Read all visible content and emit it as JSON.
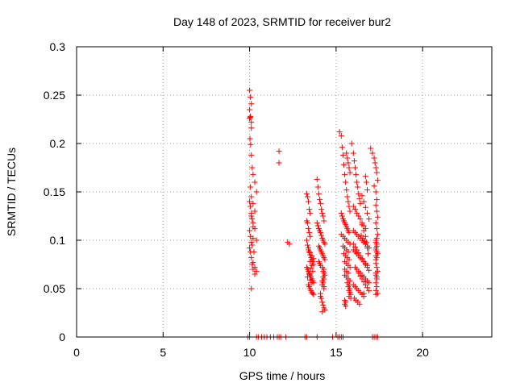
{
  "chart_data": {
    "type": "scatter",
    "title": "Day 148 of 2023, SRMTID for receiver bur2",
    "xlabel": "GPS time / hours",
    "ylabel": "SRMTID / TECUs",
    "xlim": [
      0,
      24
    ],
    "ylim": [
      0,
      0.3
    ],
    "xticks": [
      0,
      5,
      10,
      15,
      20
    ],
    "xtick_labels": [
      "0",
      "5",
      "10",
      "15",
      "20"
    ],
    "yticks": [
      0,
      0.05,
      0.1,
      0.15,
      0.2,
      0.25,
      0.3
    ],
    "ytick_labels": [
      "0",
      "0.05",
      "0.1",
      "0.15",
      "0.2",
      "0.25",
      "0.3"
    ],
    "grid": true,
    "marker": "+",
    "series": [
      {
        "name": "SRMTID",
        "color": "#ff0000",
        "x": [
          10.0,
          10.05,
          10.1,
          10.0,
          10.05,
          10.1,
          10.0,
          10.05,
          10.1,
          10.02,
          10.06,
          10.1,
          10.15,
          10.2,
          10.3,
          10.4,
          10.05,
          10.1,
          10.2,
          10.3,
          10.1,
          10.2,
          10.3,
          10.4,
          10.15,
          10.25,
          10.0,
          10.05,
          10.1,
          10.15,
          10.2,
          10.0,
          10.05,
          10.1,
          10.0,
          10.05,
          10.1,
          10.2,
          10.3,
          10.4,
          10.15,
          10.2,
          10.3,
          10.1,
          10.2,
          11.7,
          11.7,
          12.2,
          12.3,
          13.3,
          13.35,
          13.4,
          13.45,
          13.5,
          13.3,
          13.35,
          13.4,
          13.45,
          13.5,
          13.3,
          13.35,
          13.4,
          13.45,
          13.5,
          13.55,
          13.6,
          13.65,
          13.7,
          13.3,
          13.35,
          13.4,
          13.45,
          13.5,
          13.55,
          13.6,
          13.65,
          13.7,
          13.4,
          13.45,
          13.5,
          13.55,
          13.6,
          13.65,
          13.7,
          13.4,
          13.5,
          13.6,
          13.7,
          13.5,
          13.6,
          13.55,
          13.65,
          13.45,
          13.35,
          13.5,
          13.6,
          13.9,
          13.95,
          14.0,
          14.05,
          14.1,
          14.15,
          14.2,
          14.25,
          14.3,
          13.9,
          13.95,
          14.0,
          14.05,
          14.1,
          14.15,
          14.2,
          14.25,
          14.3,
          14.35,
          14.0,
          14.05,
          14.1,
          14.15,
          14.2,
          14.25,
          14.3,
          14.35,
          14.0,
          14.05,
          14.1,
          14.2,
          14.3,
          14.25,
          14.3,
          14.35,
          14.25,
          14.3,
          14.2,
          14.25,
          14.2,
          14.3,
          14.3,
          14.1,
          14.15,
          14.2,
          14.25,
          14.3,
          14.35,
          14.1,
          14.2,
          15.2,
          15.3,
          15.35,
          15.4,
          15.45,
          15.5,
          15.55,
          15.6,
          15.65,
          15.7,
          15.75,
          15.8,
          15.3,
          15.35,
          15.4,
          15.45,
          15.5,
          15.55,
          15.6,
          15.65,
          15.7,
          15.75,
          15.3,
          15.4,
          15.5,
          15.6,
          15.7,
          15.8,
          15.4,
          15.5,
          15.6,
          15.7,
          15.45,
          15.55,
          15.65,
          15.75,
          15.5,
          15.6,
          15.7,
          15.8,
          15.5,
          15.6,
          15.7,
          15.5,
          15.6,
          15.7,
          15.8,
          15.65,
          15.75,
          15.7,
          15.8,
          15.75,
          15.8,
          15.85,
          15.75,
          15.85,
          15.5,
          15.55,
          15.5,
          15.55,
          15.6,
          15.65,
          15.7,
          15.75,
          15.8,
          15.9,
          16.0,
          16.05,
          16.1,
          16.15,
          16.2,
          16.25,
          16.3,
          16.35,
          16.4,
          16.0,
          16.1,
          16.2,
          16.3,
          16.4,
          16.5,
          16.6,
          16.7,
          16.0,
          16.1,
          16.2,
          16.3,
          16.4,
          16.5,
          16.6,
          16.7,
          16.8,
          16.9,
          16.0,
          16.1,
          16.2,
          16.3,
          16.4,
          16.5,
          16.6,
          16.7,
          16.8,
          16.1,
          16.2,
          16.3,
          16.4,
          16.5,
          16.6,
          16.7,
          16.8,
          16.9,
          16.0,
          16.1,
          16.2,
          16.3,
          16.4,
          16.5,
          16.6,
          16.05,
          16.15,
          16.25,
          16.35,
          16.45,
          16.55,
          16.65,
          16.0,
          16.1,
          16.2,
          16.3,
          16.4,
          16.5,
          16.6,
          16.7,
          16.8,
          16.9,
          16.3,
          16.4,
          16.5,
          16.6,
          16.7,
          16.8,
          16.9,
          16.6,
          16.7,
          16.75,
          16.8,
          16.5,
          16.6,
          16.7,
          16.8,
          16.9,
          16.5,
          16.6,
          16.7,
          16.75,
          16.8,
          16.85,
          17.0,
          17.1,
          17.2,
          17.25,
          17.3,
          17.35,
          17.4,
          17.2,
          17.3,
          17.35,
          17.3,
          17.35,
          17.4,
          17.3,
          17.35,
          17.4,
          17.3,
          17.35,
          17.3,
          17.35,
          17.3,
          17.3,
          17.3,
          17.35,
          17.4,
          17.3,
          17.35,
          17.3,
          17.35,
          17.3,
          17.4,
          17.35,
          17.3,
          17.35,
          17.3,
          17.4,
          17.35,
          17.3,
          17.35,
          17.3,
          9.9,
          10.0,
          10.4,
          10.5,
          10.7,
          10.85,
          11.0,
          11.2,
          11.4,
          11.6,
          11.7,
          11.8,
          12.1,
          13.2,
          13.3,
          14.8,
          13.9,
          15.1,
          15.2,
          15.3,
          15.4,
          17.1,
          17.2,
          17.3,
          17.4
        ],
        "y": [
          0.255,
          0.248,
          0.241,
          0.235,
          0.228,
          0.222,
          0.226,
          0.227,
          0.216,
          0.205,
          0.199,
          0.188,
          0.175,
          0.168,
          0.16,
          0.15,
          0.155,
          0.145,
          0.138,
          0.13,
          0.125,
          0.118,
          0.112,
          0.1,
          0.095,
          0.088,
          0.14,
          0.135,
          0.128,
          0.122,
          0.114,
          0.11,
          0.104,
          0.098,
          0.092,
          0.088,
          0.082,
          0.077,
          0.072,
          0.068,
          0.075,
          0.07,
          0.065,
          0.05,
          0.102,
          0.192,
          0.18,
          0.098,
          0.096,
          0.148,
          0.145,
          0.14,
          0.132,
          0.128,
          0.12,
          0.118,
          0.112,
          0.108,
          0.104,
          0.1,
          0.095,
          0.092,
          0.088,
          0.085,
          0.082,
          0.08,
          0.078,
          0.075,
          0.072,
          0.07,
          0.068,
          0.066,
          0.064,
          0.062,
          0.06,
          0.058,
          0.056,
          0.054,
          0.052,
          0.05,
          0.048,
          0.046,
          0.045,
          0.044,
          0.09,
          0.087,
          0.084,
          0.081,
          0.078,
          0.074,
          0.071,
          0.068,
          0.065,
          0.062,
          0.059,
          0.056,
          0.163,
          0.155,
          0.148,
          0.142,
          0.138,
          0.132,
          0.128,
          0.125,
          0.12,
          0.118,
          0.115,
          0.112,
          0.11,
          0.108,
          0.105,
          0.102,
          0.1,
          0.098,
          0.096,
          0.094,
          0.092,
          0.09,
          0.088,
          0.086,
          0.084,
          0.082,
          0.08,
          0.078,
          0.076,
          0.074,
          0.072,
          0.07,
          0.068,
          0.066,
          0.064,
          0.062,
          0.06,
          0.058,
          0.056,
          0.054,
          0.052,
          0.05,
          0.045,
          0.04,
          0.036,
          0.033,
          0.03,
          0.028,
          0.042,
          0.026,
          0.212,
          0.208,
          0.196,
          0.188,
          0.178,
          0.168,
          0.16,
          0.152,
          0.145,
          0.14,
          0.135,
          0.13,
          0.128,
          0.125,
          0.122,
          0.12,
          0.118,
          0.116,
          0.114,
          0.112,
          0.11,
          0.108,
          0.106,
          0.104,
          0.102,
          0.1,
          0.098,
          0.096,
          0.094,
          0.092,
          0.09,
          0.088,
          0.086,
          0.084,
          0.082,
          0.08,
          0.078,
          0.076,
          0.074,
          0.072,
          0.07,
          0.068,
          0.066,
          0.064,
          0.062,
          0.06,
          0.058,
          0.056,
          0.054,
          0.052,
          0.05,
          0.048,
          0.046,
          0.044,
          0.042,
          0.04,
          0.038,
          0.036,
          0.034,
          0.032,
          0.19,
          0.185,
          0.18,
          0.175,
          0.17,
          0.2,
          0.19,
          0.182,
          0.175,
          0.168,
          0.16,
          0.155,
          0.148,
          0.143,
          0.138,
          0.135,
          0.132,
          0.128,
          0.125,
          0.122,
          0.118,
          0.115,
          0.112,
          0.11,
          0.108,
          0.106,
          0.104,
          0.102,
          0.1,
          0.098,
          0.096,
          0.094,
          0.092,
          0.09,
          0.088,
          0.086,
          0.084,
          0.082,
          0.08,
          0.078,
          0.076,
          0.074,
          0.072,
          0.07,
          0.068,
          0.066,
          0.064,
          0.062,
          0.06,
          0.058,
          0.056,
          0.054,
          0.052,
          0.05,
          0.048,
          0.046,
          0.044,
          0.042,
          0.04,
          0.038,
          0.036,
          0.034,
          0.105,
          0.102,
          0.099,
          0.096,
          0.093,
          0.09,
          0.087,
          0.084,
          0.081,
          0.078,
          0.075,
          0.072,
          0.069,
          0.066,
          0.063,
          0.06,
          0.057,
          0.054,
          0.051,
          0.048,
          0.045,
          0.166,
          0.16,
          0.152,
          0.146,
          0.14,
          0.134,
          0.128,
          0.122,
          0.116,
          0.11,
          0.104,
          0.098,
          0.092,
          0.086,
          0.195,
          0.19,
          0.185,
          0.18,
          0.175,
          0.17,
          0.162,
          0.156,
          0.15,
          0.142,
          0.136,
          0.13,
          0.124,
          0.118,
          0.112,
          0.106,
          0.1,
          0.096,
          0.092,
          0.088,
          0.084,
          0.08,
          0.076,
          0.072,
          0.068,
          0.064,
          0.06,
          0.056,
          0.052,
          0.048,
          0.045,
          0.102,
          0.098,
          0.094,
          0.09,
          0.086,
          0.082,
          0.066,
          0.062,
          0.044,
          0,
          0,
          0,
          0,
          0,
          0,
          0,
          0,
          0,
          0,
          0,
          0,
          0,
          0,
          0,
          0,
          0,
          0,
          0,
          0,
          0,
          0,
          0,
          0,
          0
        ]
      }
    ]
  }
}
